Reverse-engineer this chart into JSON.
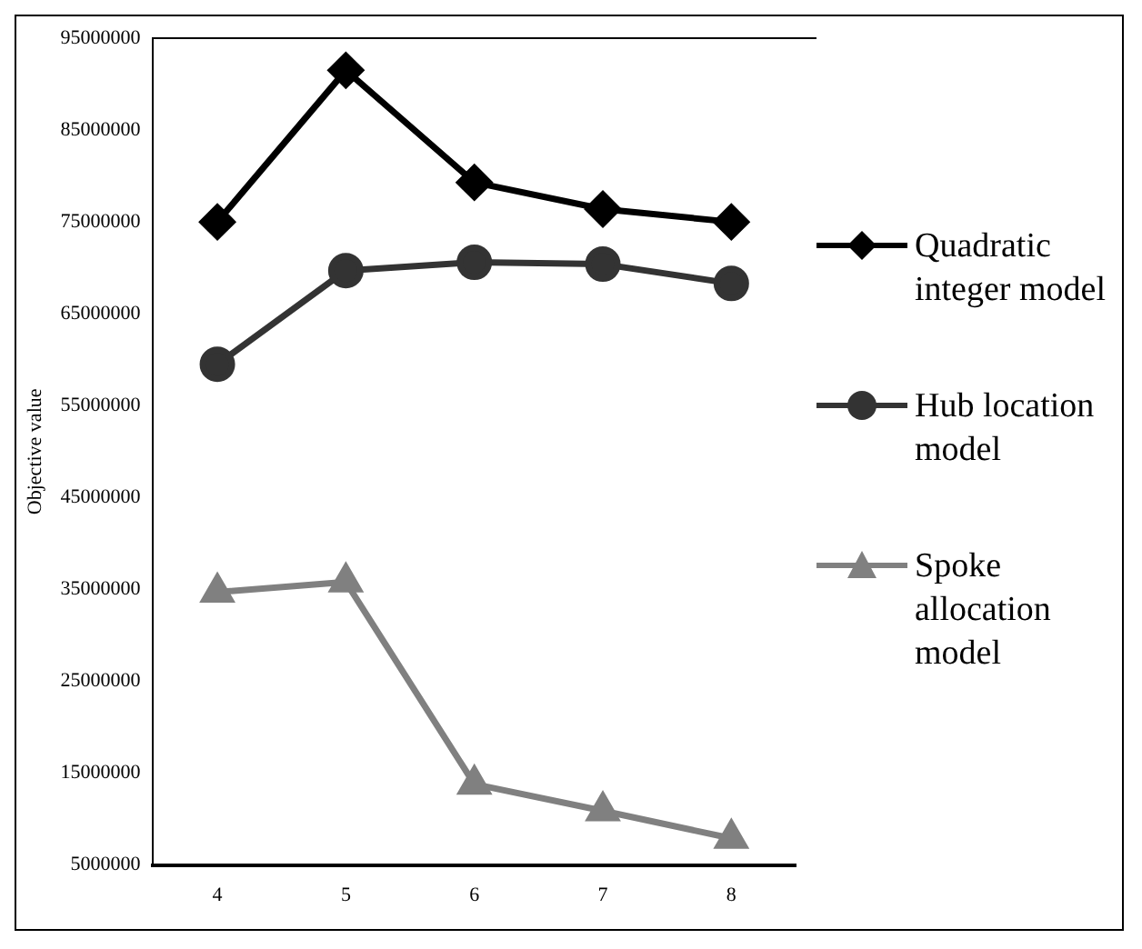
{
  "chart_data": {
    "type": "line",
    "ylabel": "Objective value",
    "categories": [
      "4",
      "5",
      "6",
      "7",
      "8"
    ],
    "series": [
      {
        "name": "Quadratic integer model",
        "color": "#000000",
        "marker": "diamond",
        "values": [
          75000000,
          91500000,
          79300000,
          76400000,
          75000000
        ]
      },
      {
        "name": "Hub location model",
        "color": "#333333",
        "marker": "circle",
        "values": [
          59500000,
          69700000,
          70600000,
          70400000,
          68300000
        ]
      },
      {
        "name": "Spoke allocation model",
        "color": "#808080",
        "marker": "triangle",
        "values": [
          34700000,
          35800000,
          13800000,
          10900000,
          7900000
        ]
      }
    ],
    "ylim": [
      5000000,
      95000000
    ],
    "yticks": [
      5000000,
      15000000,
      25000000,
      35000000,
      45000000,
      55000000,
      65000000,
      75000000,
      85000000,
      95000000
    ],
    "grid": false,
    "legend": "right",
    "line_style": "solid"
  }
}
